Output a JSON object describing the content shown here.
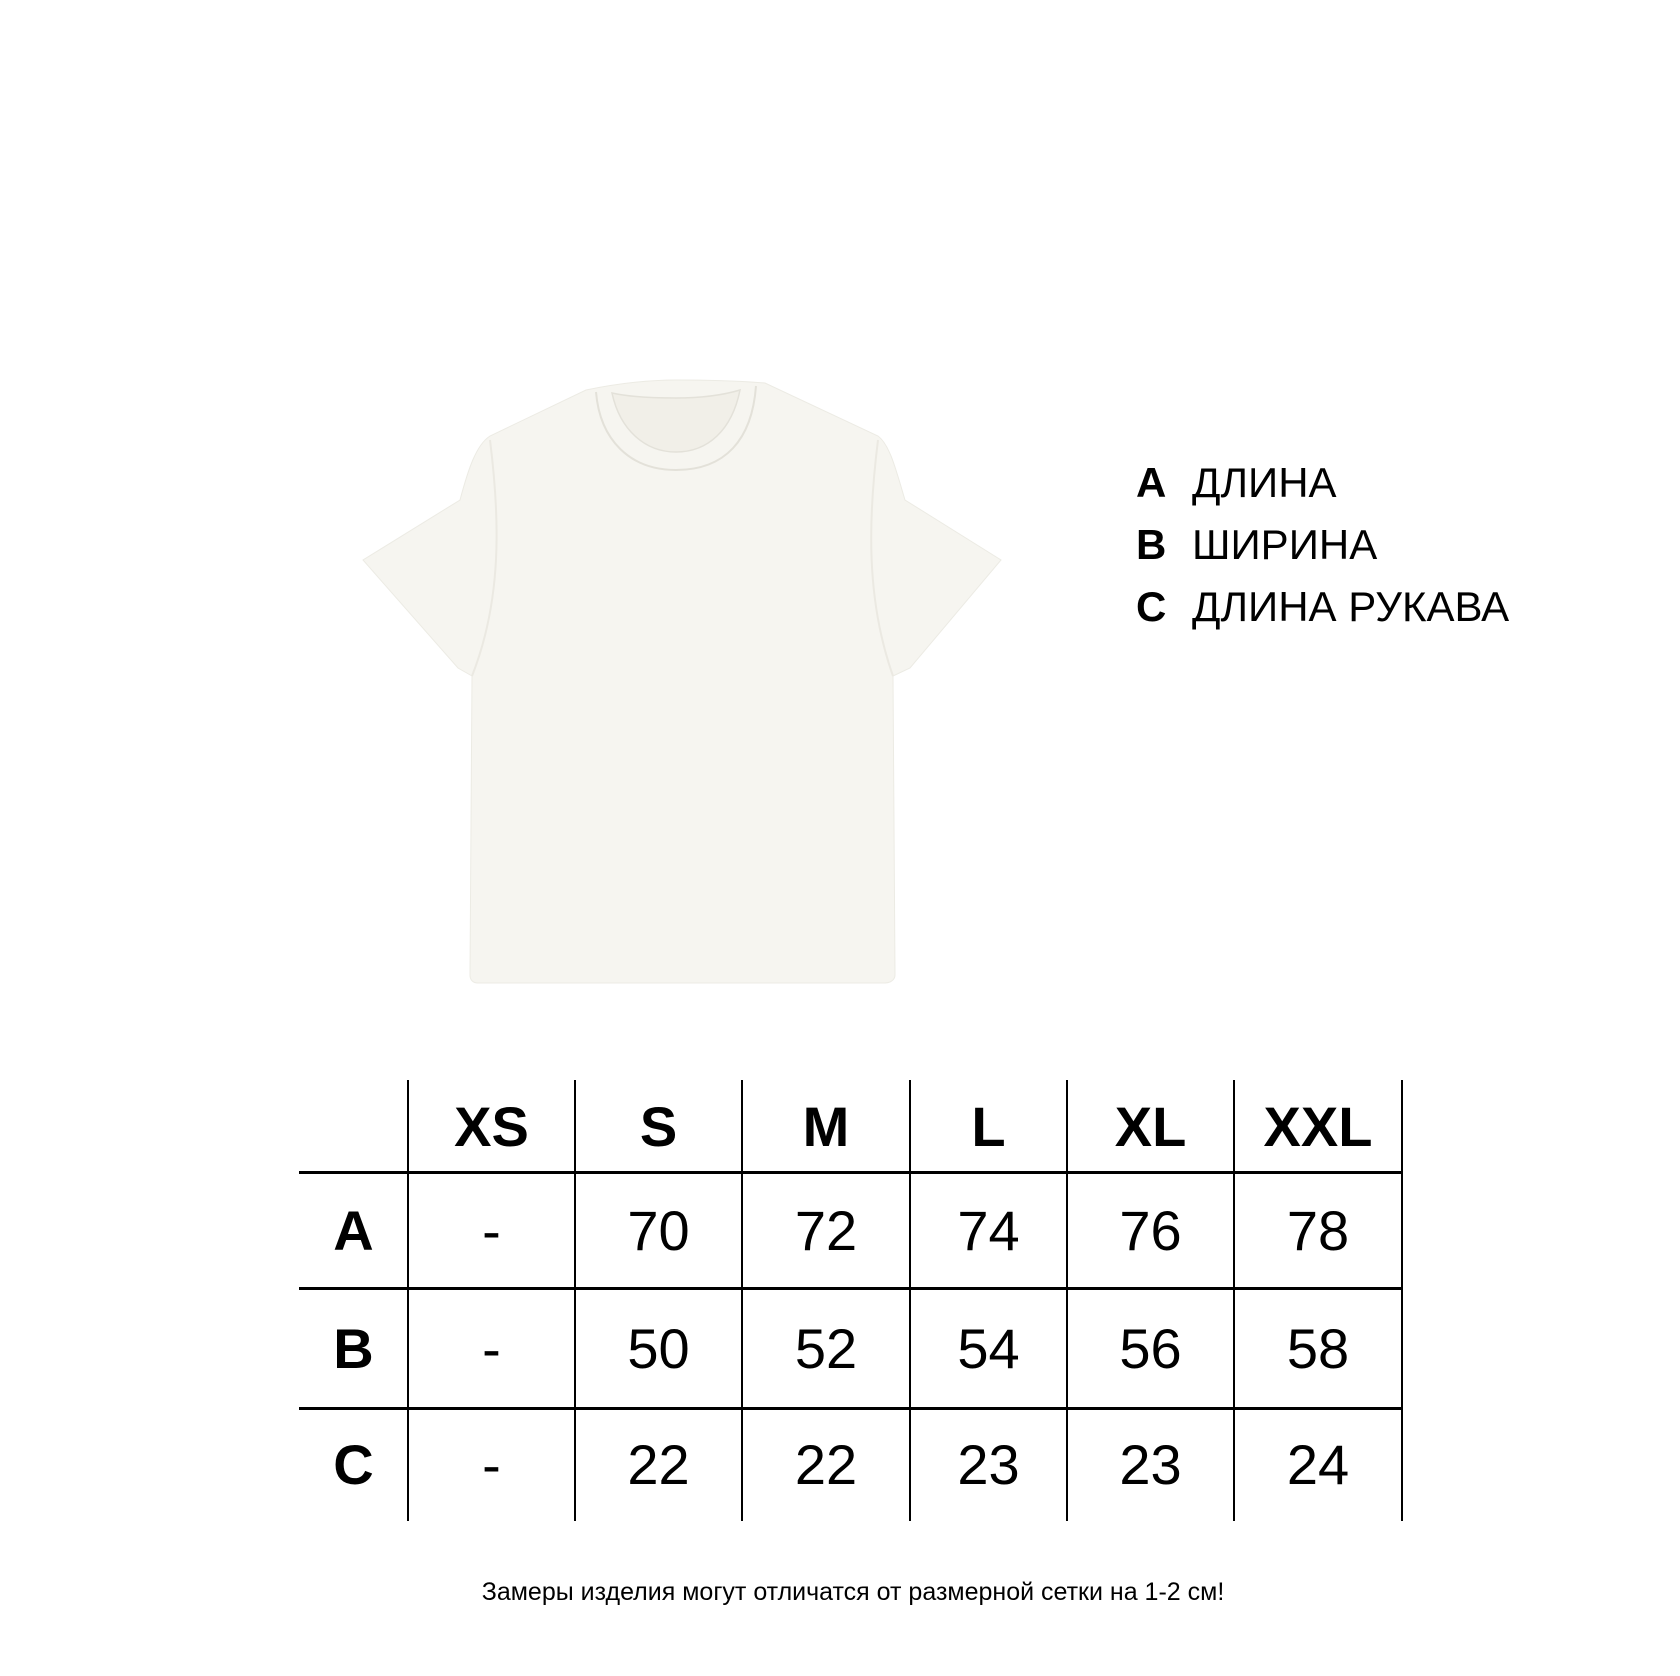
{
  "colors": {
    "shirt": "#f6f5f0",
    "shirt_seam": "#e6e4dc",
    "text": "#000000"
  },
  "legend": [
    {
      "key": "A",
      "label": "ДЛИНА"
    },
    {
      "key": "B",
      "label": "ШИРИНА"
    },
    {
      "key": "C",
      "label": "ДЛИНА РУКАВА"
    }
  ],
  "table": {
    "headers": [
      "",
      "XS",
      "S",
      "M",
      "L",
      "XL",
      "XXL"
    ],
    "rows": [
      {
        "label": "A",
        "values": [
          "-",
          "70",
          "72",
          "74",
          "76",
          "78"
        ]
      },
      {
        "label": "B",
        "values": [
          "-",
          "50",
          "52",
          "54",
          "56",
          "58"
        ]
      },
      {
        "label": "C",
        "values": [
          "-",
          "22",
          "22",
          "23",
          "23",
          "24"
        ]
      }
    ]
  },
  "note": "Замеры изделия могут отличатся от размерной сетки на 1-2 см!"
}
